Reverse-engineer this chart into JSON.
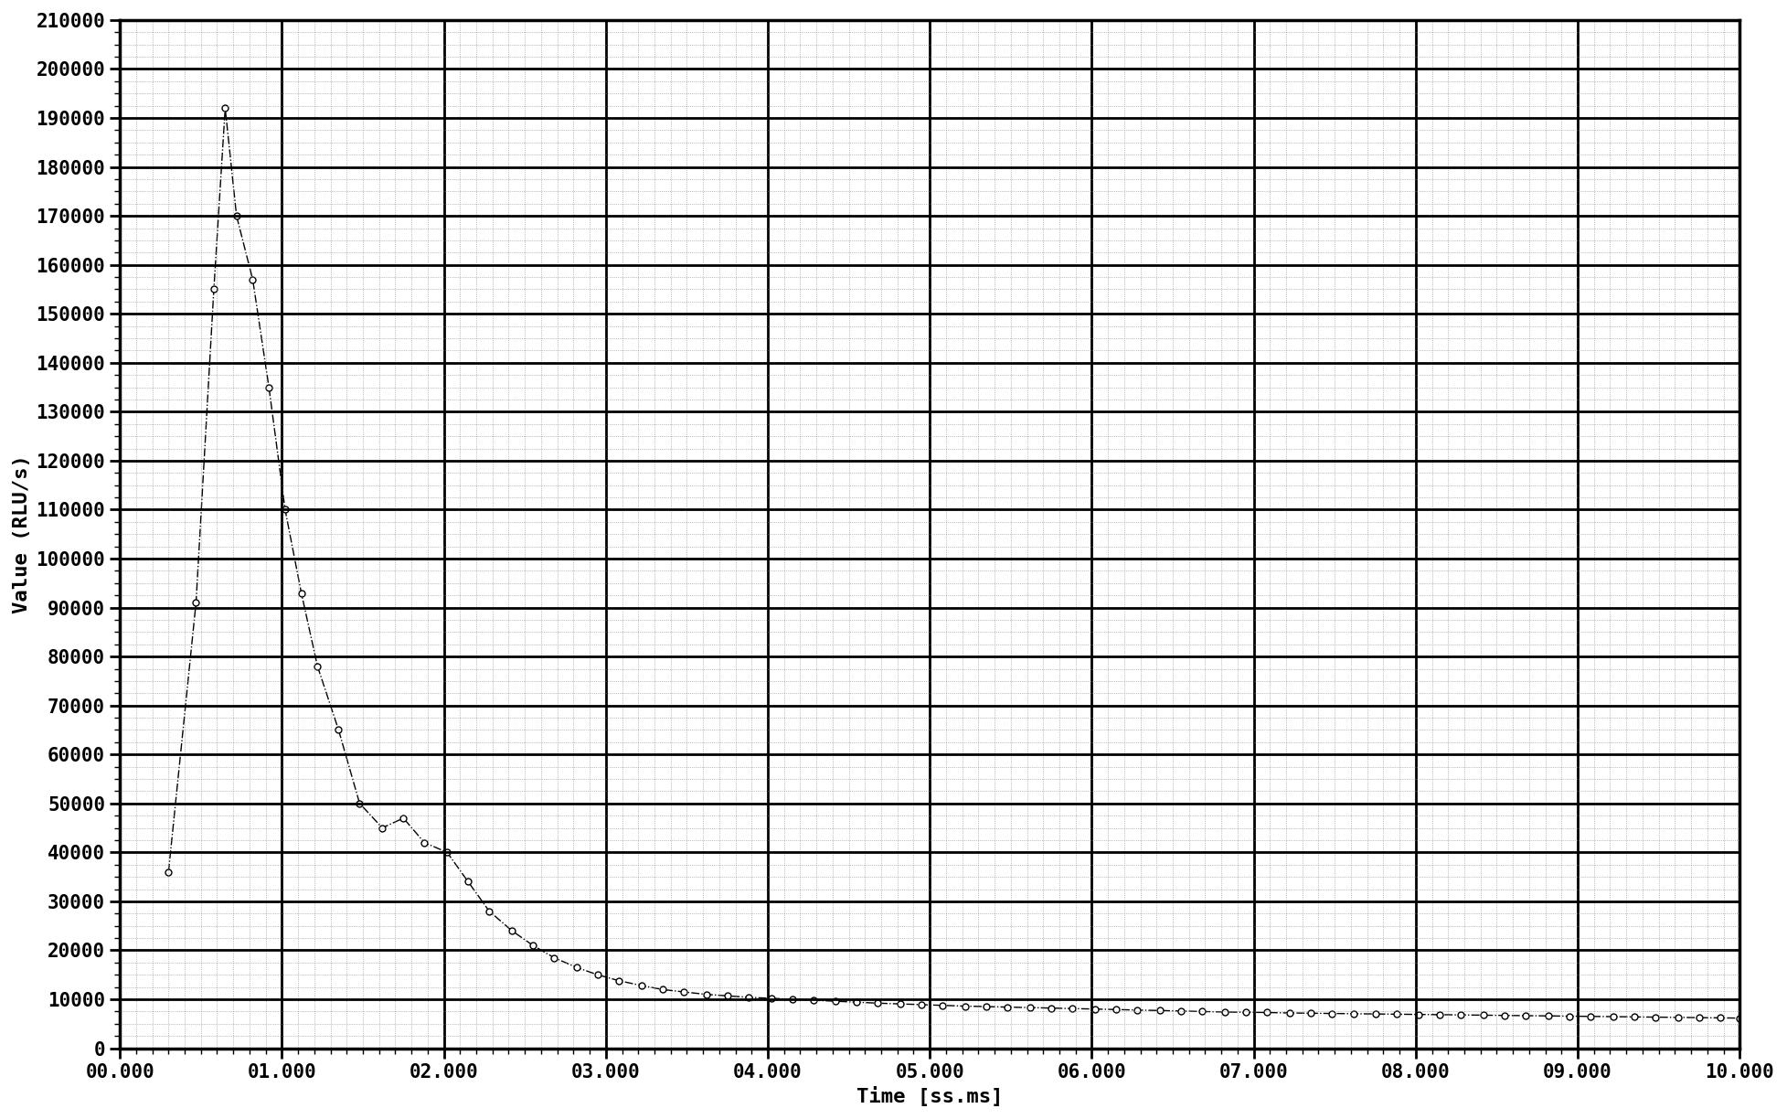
{
  "title": "",
  "xlabel": "Time [ss.ms]",
  "ylabel": "Value (RLU/s)",
  "xlim": [
    0,
    10.0
  ],
  "ylim": [
    0,
    210000
  ],
  "yticks": [
    0,
    10000,
    20000,
    30000,
    40000,
    50000,
    60000,
    70000,
    80000,
    90000,
    100000,
    110000,
    120000,
    130000,
    140000,
    150000,
    160000,
    170000,
    180000,
    190000,
    200000,
    210000
  ],
  "xtick_labels": [
    "00.000",
    "01.000",
    "02.000",
    "03.000",
    "04.000",
    "05.000",
    "06.000",
    "07.000",
    "08.000",
    "09.000",
    "10.000"
  ],
  "xtick_positions": [
    0,
    1,
    2,
    3,
    4,
    5,
    6,
    7,
    8,
    9,
    10
  ],
  "background_color": "#ffffff",
  "grid_major_color": "#000000",
  "grid_minor_color": "#888888",
  "line_color": "#000000",
  "data_x": [
    0.3,
    0.47,
    0.58,
    0.65,
    0.72,
    0.82,
    0.92,
    1.02,
    1.12,
    1.22,
    1.35,
    1.48,
    1.62,
    1.75,
    1.88,
    2.02,
    2.15,
    2.28,
    2.42,
    2.55,
    2.68,
    2.82,
    2.95,
    3.08,
    3.22,
    3.35,
    3.48,
    3.62,
    3.75,
    3.88,
    4.02,
    4.15,
    4.28,
    4.42,
    4.55,
    4.68,
    4.82,
    4.95,
    5.08,
    5.22,
    5.35,
    5.48,
    5.62,
    5.75,
    5.88,
    6.02,
    6.15,
    6.28,
    6.42,
    6.55,
    6.68,
    6.82,
    6.95,
    7.08,
    7.22,
    7.35,
    7.48,
    7.62,
    7.75,
    7.88,
    8.02,
    8.15,
    8.28,
    8.42,
    8.55,
    8.68,
    8.82,
    8.95,
    9.08,
    9.22,
    9.35,
    9.48,
    9.62,
    9.75,
    9.88,
    10.0
  ],
  "data_y": [
    36000,
    91000,
    155000,
    192000,
    170000,
    157000,
    135000,
    110000,
    93000,
    78000,
    65000,
    50000,
    45000,
    47000,
    42000,
    40000,
    34000,
    28000,
    24000,
    21000,
    18500,
    16500,
    15000,
    13800,
    12800,
    12000,
    11500,
    11000,
    10700,
    10400,
    10200,
    10000,
    9800,
    9600,
    9400,
    9200,
    9050,
    8900,
    8750,
    8600,
    8500,
    8400,
    8300,
    8200,
    8100,
    8000,
    7900,
    7800,
    7700,
    7600,
    7500,
    7400,
    7350,
    7300,
    7200,
    7150,
    7100,
    7050,
    7000,
    6950,
    6900,
    6850,
    6800,
    6750,
    6700,
    6650,
    6600,
    6550,
    6500,
    6450,
    6400,
    6350,
    6300,
    6250,
    6200,
    6150
  ]
}
